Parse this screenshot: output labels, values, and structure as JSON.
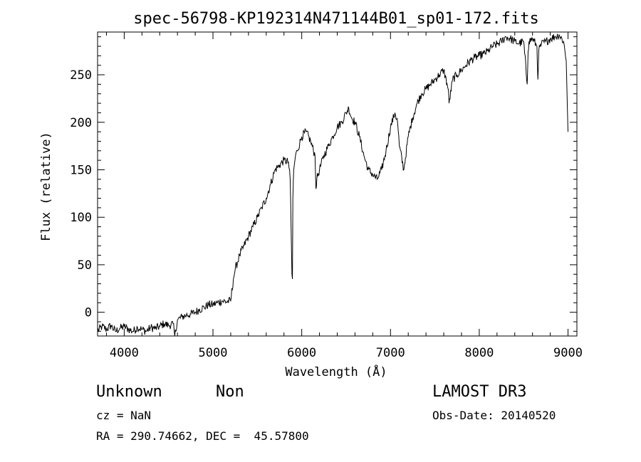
{
  "chart_data": {
    "type": "line",
    "title": "spec-56798-KP192314N471144B01_sp01-172.fits",
    "xlabel": "Wavelength (Å)",
    "ylabel": "Flux (relative)",
    "xlim": [
      3700,
      9100
    ],
    "ylim": [
      -25,
      295
    ],
    "x_ticks": [
      4000,
      5000,
      6000,
      7000,
      8000,
      9000
    ],
    "y_ticks": [
      0,
      50,
      100,
      150,
      200,
      250
    ],
    "grid": false,
    "line_color": "#000000",
    "series": [
      {
        "x": [
          3700,
          3750,
          3800,
          3850,
          3900,
          3950,
          4000,
          4050,
          4100,
          4150,
          4200,
          4250,
          4300,
          4350,
          4400,
          4450,
          4500,
          4550,
          4570,
          4600,
          4650,
          4700,
          4750,
          4800,
          4850,
          4900,
          4950,
          5000,
          5050,
          5100,
          5150,
          5200,
          5230,
          5250,
          5300,
          5350,
          5400,
          5450,
          5500,
          5550,
          5600,
          5650,
          5700,
          5750,
          5800,
          5850,
          5870,
          5880,
          5890,
          5895,
          5900,
          5910,
          5930,
          5950,
          6000,
          6050,
          6100,
          6150,
          6160,
          6170,
          6200,
          6250,
          6300,
          6350,
          6400,
          6450,
          6500,
          6530,
          6560,
          6600,
          6650,
          6700,
          6750,
          6800,
          6850,
          6900,
          6950,
          7000,
          7050,
          7080,
          7100,
          7150,
          7200,
          7250,
          7300,
          7350,
          7400,
          7450,
          7500,
          7550,
          7600,
          7650,
          7660,
          7700,
          7750,
          7800,
          7850,
          7900,
          7950,
          8000,
          8050,
          8100,
          8150,
          8200,
          8250,
          8300,
          8350,
          8400,
          8450,
          8500,
          8540,
          8550,
          8560,
          8600,
          8650,
          8660,
          8670,
          8700,
          8750,
          8800,
          8850,
          8900,
          8950,
          8980,
          9000
        ],
        "values": [
          -20,
          -15,
          -18,
          -14,
          -20,
          -17,
          -15,
          -18,
          -20,
          -16,
          -18,
          -20,
          -16,
          -17,
          -15,
          -12,
          -14,
          -12,
          -25,
          -8,
          -5,
          -3,
          -2,
          0,
          3,
          5,
          8,
          8,
          10,
          12,
          11,
          12,
          35,
          45,
          60,
          70,
          80,
          90,
          100,
          110,
          120,
          135,
          150,
          155,
          160,
          158,
          140,
          90,
          40,
          35,
          120,
          150,
          165,
          170,
          185,
          190,
          180,
          165,
          130,
          140,
          150,
          165,
          175,
          185,
          195,
          200,
          210,
          215,
          205,
          200,
          185,
          165,
          150,
          145,
          140,
          150,
          170,
          195,
          210,
          200,
          175,
          150,
          185,
          205,
          220,
          230,
          235,
          240,
          245,
          250,
          255,
          235,
          220,
          245,
          250,
          255,
          260,
          265,
          268,
          270,
          272,
          275,
          280,
          282,
          285,
          290,
          288,
          285,
          283,
          285,
          240,
          275,
          285,
          288,
          280,
          245,
          275,
          282,
          285,
          288,
          290,
          292,
          285,
          265,
          190
        ]
      }
    ]
  },
  "info": {
    "object_type": "Unknown",
    "object_class": "Non",
    "survey": "LAMOST DR3",
    "cz": "cz = NaN",
    "obs_date": "Obs-Date: 20140520",
    "coords": "RA = 290.74662, DEC =  45.57800"
  }
}
